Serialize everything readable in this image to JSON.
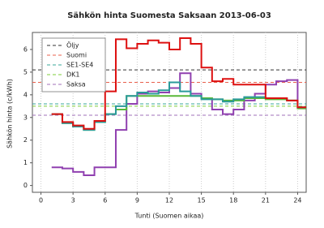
{
  "chart_data": {
    "type": "step",
    "title": "Sähkön hinta Suomesta Saksaan 2013-06-03",
    "xlabel": "Tunti (Suomen aikaa)",
    "ylabel": "Sähkön hinta (c/kWh)",
    "x": [
      1,
      2,
      3,
      4,
      5,
      6,
      7,
      8,
      9,
      10,
      11,
      12,
      13,
      14,
      15,
      16,
      17,
      18,
      19,
      20,
      21,
      22,
      23,
      24
    ],
    "xlim": [
      -0.8,
      24.8
    ],
    "xticks": [
      0,
      3,
      6,
      9,
      12,
      15,
      18,
      21,
      24
    ],
    "ylim": [
      -0.3,
      6.75
    ],
    "yticks": [
      0,
      1,
      2,
      3,
      4,
      5,
      6
    ],
    "grid": true,
    "legend": "upper left",
    "reference_lines": [
      {
        "name": "Öljy",
        "color": "#333333",
        "value": 5.1
      },
      {
        "name": "Suomi",
        "color": "#e8604c",
        "value": 4.55
      },
      {
        "name": "SE1-SE4",
        "color": "#3aa79a",
        "value": 3.6
      },
      {
        "name": "DK1",
        "color": "#7ccc3a",
        "value": 3.5
      },
      {
        "name": "Saksa",
        "color": "#a070b8",
        "value": 3.1
      }
    ],
    "series": [
      {
        "color": "#9040b0",
        "values": [
          0.8,
          0.75,
          0.6,
          0.45,
          0.8,
          0.8,
          2.45,
          3.6,
          4.05,
          4.15,
          4.1,
          4.3,
          4.95,
          4.05,
          3.85,
          3.35,
          3.15,
          3.35,
          3.75,
          4.05,
          4.45,
          4.6,
          4.65,
          3.45
        ]
      },
      {
        "color": "#58b838",
        "values": [
          3.15,
          2.75,
          2.6,
          2.45,
          2.8,
          3.15,
          3.35,
          3.95,
          3.95,
          3.95,
          3.95,
          3.95,
          3.95,
          3.95,
          3.85,
          3.8,
          3.75,
          3.75,
          3.85,
          3.85,
          3.8,
          3.8,
          3.75,
          3.4
        ]
      },
      {
        "color": "#2a9a9a",
        "values": [
          3.15,
          2.75,
          2.6,
          2.45,
          2.8,
          3.15,
          3.5,
          3.95,
          4.1,
          4.05,
          4.2,
          4.55,
          4.15,
          3.95,
          3.8,
          3.8,
          3.7,
          3.8,
          3.9,
          3.9,
          3.85,
          3.85,
          3.75,
          3.45
        ]
      },
      {
        "color": "#dd1010",
        "values": [
          3.15,
          2.8,
          2.65,
          2.5,
          2.85,
          4.15,
          6.45,
          6.05,
          6.25,
          6.4,
          6.3,
          6.0,
          6.5,
          6.25,
          5.2,
          4.6,
          4.7,
          4.45,
          4.45,
          4.45,
          3.85,
          3.85,
          3.75,
          3.45
        ]
      }
    ]
  }
}
